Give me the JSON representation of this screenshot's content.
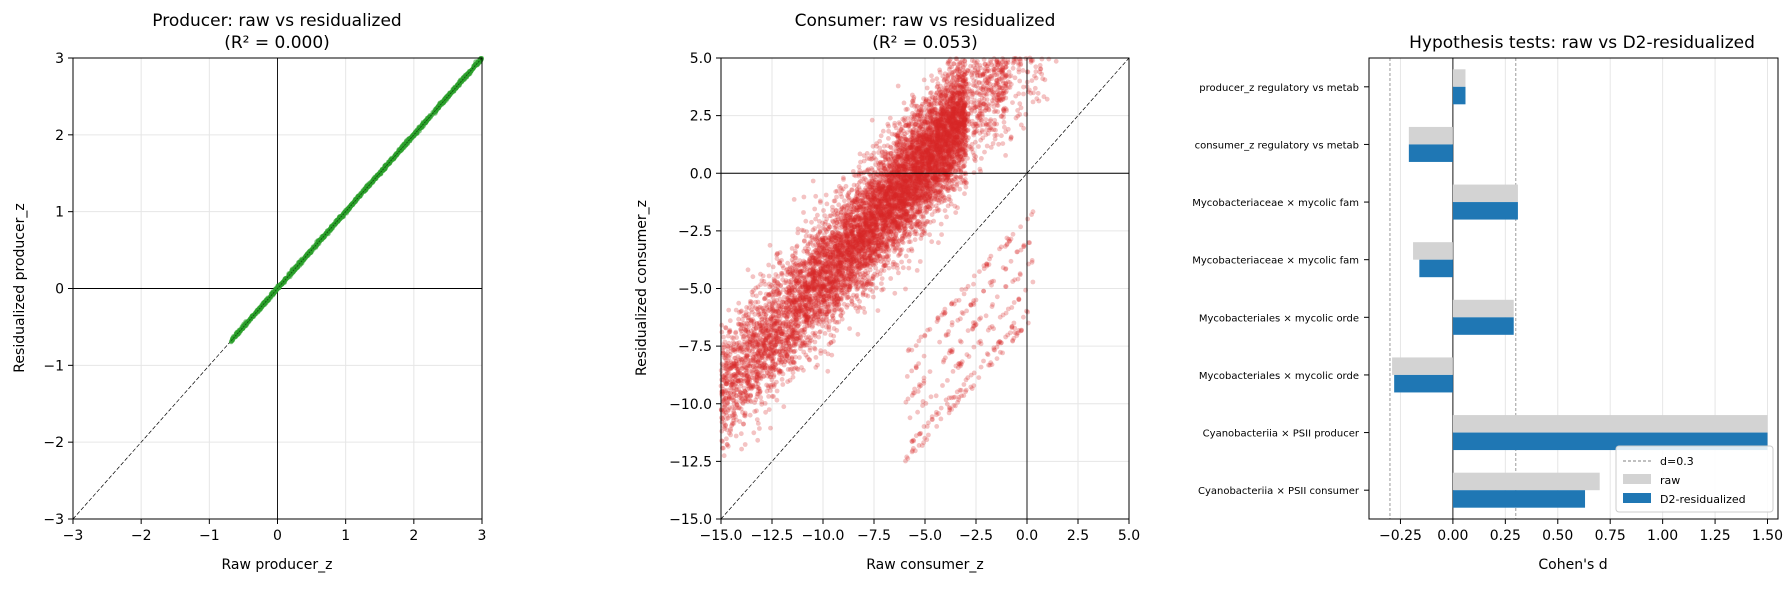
{
  "colors": {
    "producer": "#2ca02c",
    "consumer": "#d62728",
    "raw": "#d3d3d3",
    "residualized": "#1f77b4",
    "grid": "#e6e6e6"
  },
  "chart_data": [
    {
      "type": "scatter",
      "title": "Producer: raw vs residualized",
      "subtitle": "(R² = 0.000)",
      "xlabel": "Raw producer_z",
      "ylabel": "Residualized producer_z",
      "xlim": [
        -3,
        3
      ],
      "ylim": [
        -3,
        3
      ],
      "xticks": [
        -3,
        -2,
        -1,
        0,
        1,
        2,
        3
      ],
      "yticks": [
        -3,
        -2,
        -1,
        0,
        1,
        2,
        3
      ],
      "grid": true,
      "reference_lines": [
        "y=x",
        "x=0",
        "y=0"
      ],
      "series": [
        {
          "x_range": [
            -0.68,
            3.0
          ],
          "relation": "y ≈ x",
          "point_count_estimate": 1500
        }
      ]
    },
    {
      "type": "scatter",
      "title": "Consumer: raw vs residualized",
      "subtitle": "(R² = 0.053)",
      "xlabel": "Raw consumer_z",
      "ylabel": "Residualized consumer_z",
      "xlim": [
        -15,
        5
      ],
      "ylim": [
        -15,
        5
      ],
      "xticks": [
        -15.0,
        -12.5,
        -10.0,
        -7.5,
        -5.0,
        -2.5,
        0.0,
        2.5,
        5.0
      ],
      "yticks": [
        -15.0,
        -12.5,
        -10.0,
        -7.5,
        -5.0,
        -2.5,
        0.0,
        2.5,
        5.0
      ],
      "grid": true,
      "reference_lines": [
        "y=x",
        "x=0",
        "y=0"
      ],
      "series": [
        {
          "relation": "dense cloud, y ≈ x + 5.5 (sd ≈ 1.3)",
          "point_count_estimate": 9000
        },
        {
          "relation": "stripes, y ≈ x - 2 to x - 6 near raw -6 to 0",
          "point_count_estimate": 300
        }
      ]
    },
    {
      "type": "bar",
      "orientation": "horizontal",
      "title": "Hypothesis tests: raw vs D2-residualized",
      "xlabel": "Cohen's d",
      "xlim": [
        -0.4,
        1.55
      ],
      "xticks": [
        -0.25,
        0.0,
        0.25,
        0.5,
        0.75,
        1.0,
        1.25,
        1.5
      ],
      "xtick_labels": [
        "−0.25",
        "0.00",
        "0.25",
        "0.50",
        "0.75",
        "1.00",
        "1.25",
        "1.50"
      ],
      "grid": true,
      "reference_lines": [
        -0.3,
        0.3
      ],
      "categories": [
        "producer_z regulatory vs metab",
        "consumer_z regulatory vs metab",
        "Mycobacteriaceae × mycolic fam",
        "Mycobacteriaceae × mycolic fam",
        "Mycobacteriales × mycolic orde",
        "Mycobacteriales × mycolic orde",
        "Cyanobacteriia × PSII producer",
        "Cyanobacteriia × PSII consumer"
      ],
      "series": [
        {
          "name": "raw",
          "values": [
            0.06,
            -0.21,
            0.31,
            -0.19,
            0.29,
            -0.29,
            1.5,
            0.7
          ]
        },
        {
          "name": "D2-residualized",
          "values": [
            0.06,
            -0.21,
            0.31,
            -0.16,
            0.29,
            -0.28,
            1.5,
            0.63
          ]
        }
      ],
      "legend": {
        "placement": "lower-right",
        "entries": [
          "d=0.3",
          "raw",
          "D2-residualized"
        ]
      }
    }
  ]
}
